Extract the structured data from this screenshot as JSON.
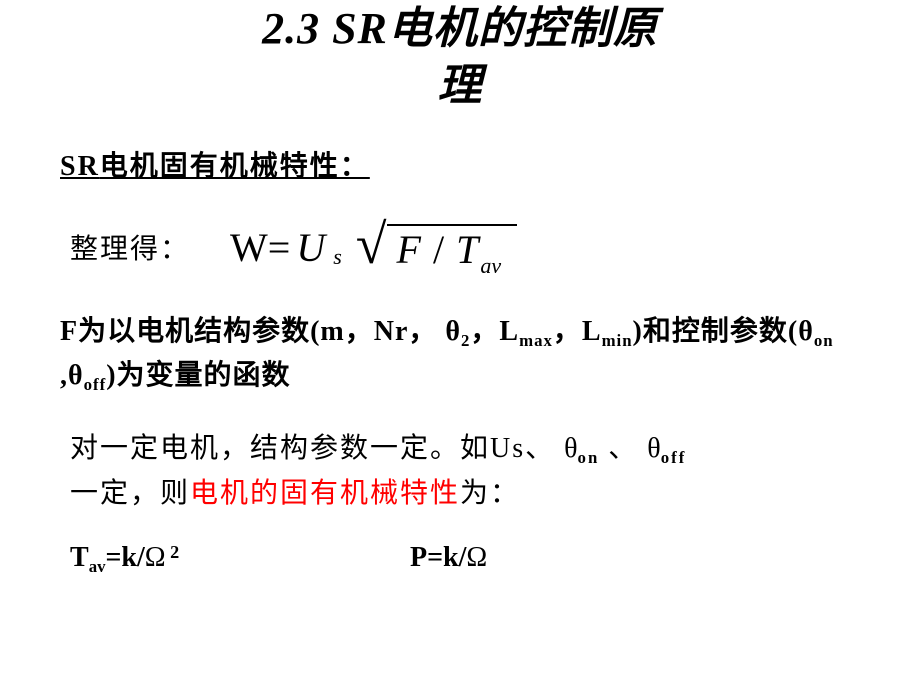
{
  "title_line1_prefix": "2.3   SR",
  "title_line1_cn": "电机的控制原",
  "title_line2": "理",
  "subheading_prefix": "SR",
  "subheading_cn": "电机固有机械特性：",
  "eq_label": "整理得：",
  "eq_W": "W",
  "eq_eq": "=",
  "eq_U": "U",
  "eq_s": "s",
  "eq_F": "F",
  "eq_slash": "/",
  "eq_T": "T",
  "eq_av": "av",
  "para1_a": "F为以电机结构参数(m，Nr， ",
  "sym_theta": "θ",
  "para1_b": "2",
  "para1_c": "，L",
  "para1_max": "max",
  "para1_d": "，L",
  "para1_min": "min",
  "para1_e": ")和控制参数(",
  "para1_on": "on",
  "para1_f": " ,",
  "para1_off": "off",
  "para1_g": ")为变量的函数",
  "para2_a": "对一定电机，结构参数一定。如Us、 ",
  "para2_on": "on",
  "para2_b": " 、 ",
  "para2_off": "off",
  "para2_c": "一定，则",
  "para2_red": "电机的固有机械特性",
  "para2_d": "为：",
  "f1_a": "T",
  "f1_av": "av",
  "f1_b": "=k/",
  "sym_omega": "Ω",
  "f1_exp": " 2",
  "f2_a": "P=k/",
  "colors": {
    "text": "#000000",
    "highlight": "#ff0000",
    "background": "#ffffff"
  },
  "fonts": {
    "title_size": 44,
    "body_size": 28,
    "equation_size": 40
  }
}
